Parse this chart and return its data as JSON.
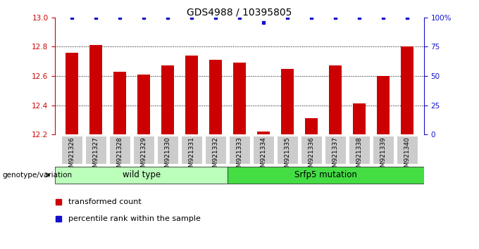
{
  "title": "GDS4988 / 10395805",
  "samples": [
    "GSM921326",
    "GSM921327",
    "GSM921328",
    "GSM921329",
    "GSM921330",
    "GSM921331",
    "GSM921332",
    "GSM921333",
    "GSM921334",
    "GSM921335",
    "GSM921336",
    "GSM921337",
    "GSM921338",
    "GSM921339",
    "GSM921340"
  ],
  "red_values": [
    12.76,
    12.81,
    12.63,
    12.61,
    12.67,
    12.74,
    12.71,
    12.69,
    12.22,
    12.65,
    12.31,
    12.67,
    12.41,
    12.6,
    12.8
  ],
  "blue_values": [
    13.0,
    13.0,
    13.0,
    13.0,
    13.0,
    13.0,
    13.0,
    13.0,
    12.965,
    13.0,
    13.0,
    13.0,
    13.0,
    13.0,
    13.0
  ],
  "ylim_left": [
    12.2,
    13.0
  ],
  "ylim_right": [
    0,
    100
  ],
  "yticks_left": [
    12.2,
    12.4,
    12.6,
    12.8,
    13.0
  ],
  "yticks_right": [
    0,
    25,
    50,
    75,
    100
  ],
  "yticklabels_right": [
    "0",
    "25",
    "50",
    "75",
    "100%"
  ],
  "hlines": [
    12.4,
    12.6,
    12.8
  ],
  "bar_color": "#cc0000",
  "dot_color": "#1111cc",
  "bar_width": 0.55,
  "groups": [
    {
      "label": "wild type",
      "start": 0,
      "end": 7,
      "color": "#bbffbb"
    },
    {
      "label": "Srfp5 mutation",
      "start": 7,
      "end": 15,
      "color": "#44dd44"
    }
  ],
  "legend_items": [
    {
      "label": "transformed count",
      "color": "#cc0000"
    },
    {
      "label": "percentile rank within the sample",
      "color": "#1111cc"
    }
  ],
  "genotype_label": "genotype/variation",
  "background_color": "#ffffff",
  "tick_color_left": "#cc0000",
  "tick_color_right": "#1111cc",
  "title_fontsize": 10,
  "xlabel_fontsize": 6.5,
  "group_fontsize": 8.5,
  "legend_fontsize": 8
}
